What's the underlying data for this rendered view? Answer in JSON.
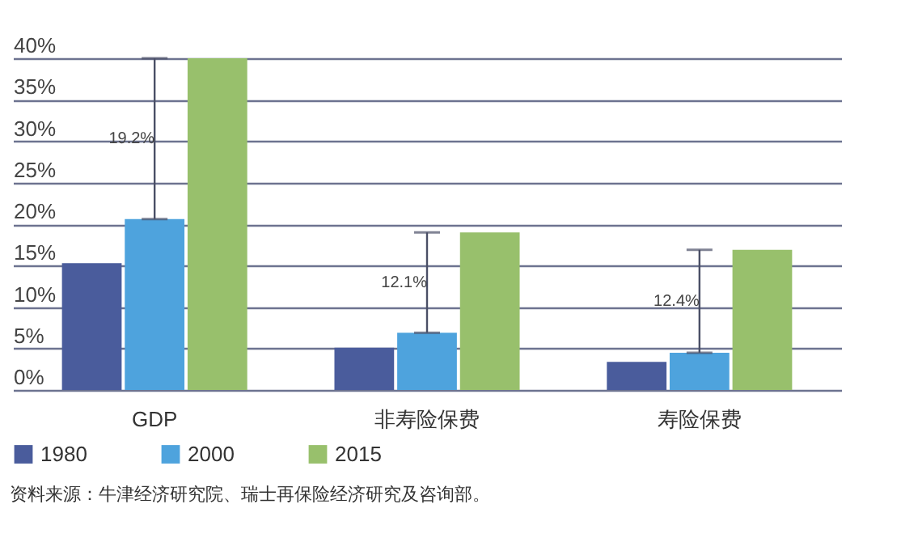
{
  "chart_data": {
    "type": "bar",
    "categories": [
      "GDP",
      "非寿险保费",
      "寿险保费"
    ],
    "series": [
      {
        "name": "1980",
        "color": "#4a5c9c",
        "values": [
          15.3,
          5.1,
          3.4
        ]
      },
      {
        "name": "2000",
        "color": "#4ea3dd",
        "values": [
          20.6,
          6.9,
          4.5
        ],
        "errors": [
          [
            20.6,
            40
          ],
          [
            6.9,
            19.0
          ],
          [
            4.5,
            16.9
          ]
        ]
      },
      {
        "name": "2015",
        "color": "#98c06c",
        "values": [
          40,
          19.0,
          16.9
        ]
      }
    ],
    "ylim": [
      0,
      40
    ],
    "yticks": [
      {
        "value": 0,
        "label": "0%"
      },
      {
        "value": 5,
        "label": "5%"
      },
      {
        "value": 10,
        "label": "10%"
      },
      {
        "value": 15,
        "label": "15%"
      },
      {
        "value": 20,
        "label": "20%"
      },
      {
        "value": 25,
        "label": "25%"
      },
      {
        "value": 30,
        "label": "30%"
      },
      {
        "value": 35,
        "label": "35%"
      },
      {
        "value": 40,
        "label": "40%"
      }
    ],
    "grid": "y",
    "legend": "bottom",
    "annotations": [
      "19.2%",
      "12.1%",
      "12.4%",
      "资料来源：牛津经济研究院、瑞士再保险经济研究及咨询部。"
    ]
  }
}
